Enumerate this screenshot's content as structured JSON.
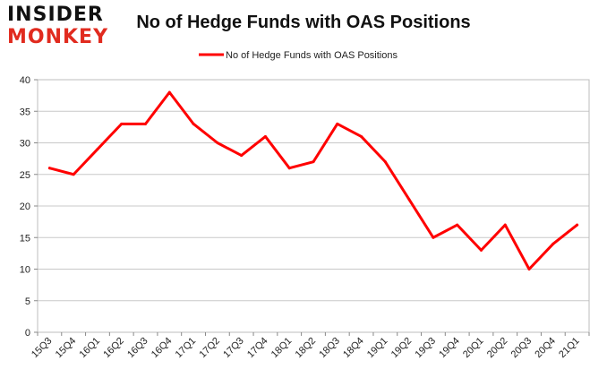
{
  "logo": {
    "line1": "INSIDER",
    "line2": "MONKEY",
    "accent": "#e12b1f"
  },
  "chart_data": {
    "type": "line",
    "title": "No of Hedge Funds with OAS Positions",
    "xlabel": "",
    "ylabel": "",
    "categories": [
      "15Q3",
      "15Q4",
      "16Q1",
      "16Q2",
      "16Q3",
      "16Q4",
      "17Q1",
      "17Q2",
      "17Q3",
      "17Q4",
      "18Q1",
      "18Q2",
      "18Q3",
      "18Q4",
      "19Q1",
      "19Q2",
      "19Q3",
      "19Q4",
      "20Q1",
      "20Q2",
      "20Q3",
      "20Q4",
      "21Q1"
    ],
    "series": [
      {
        "name": "No of Hedge Funds with OAS Positions",
        "color": "#ff0000",
        "values": [
          26,
          25,
          29,
          33,
          33,
          38,
          33,
          30,
          28,
          31,
          26,
          27,
          33,
          31,
          27,
          21,
          15,
          17,
          13,
          17,
          10,
          14,
          17
        ]
      }
    ],
    "ylim": [
      0,
      40
    ],
    "yticks": [
      0,
      5,
      10,
      15,
      20,
      25,
      30,
      35,
      40
    ],
    "grid": true,
    "legend_position": "top-center"
  }
}
